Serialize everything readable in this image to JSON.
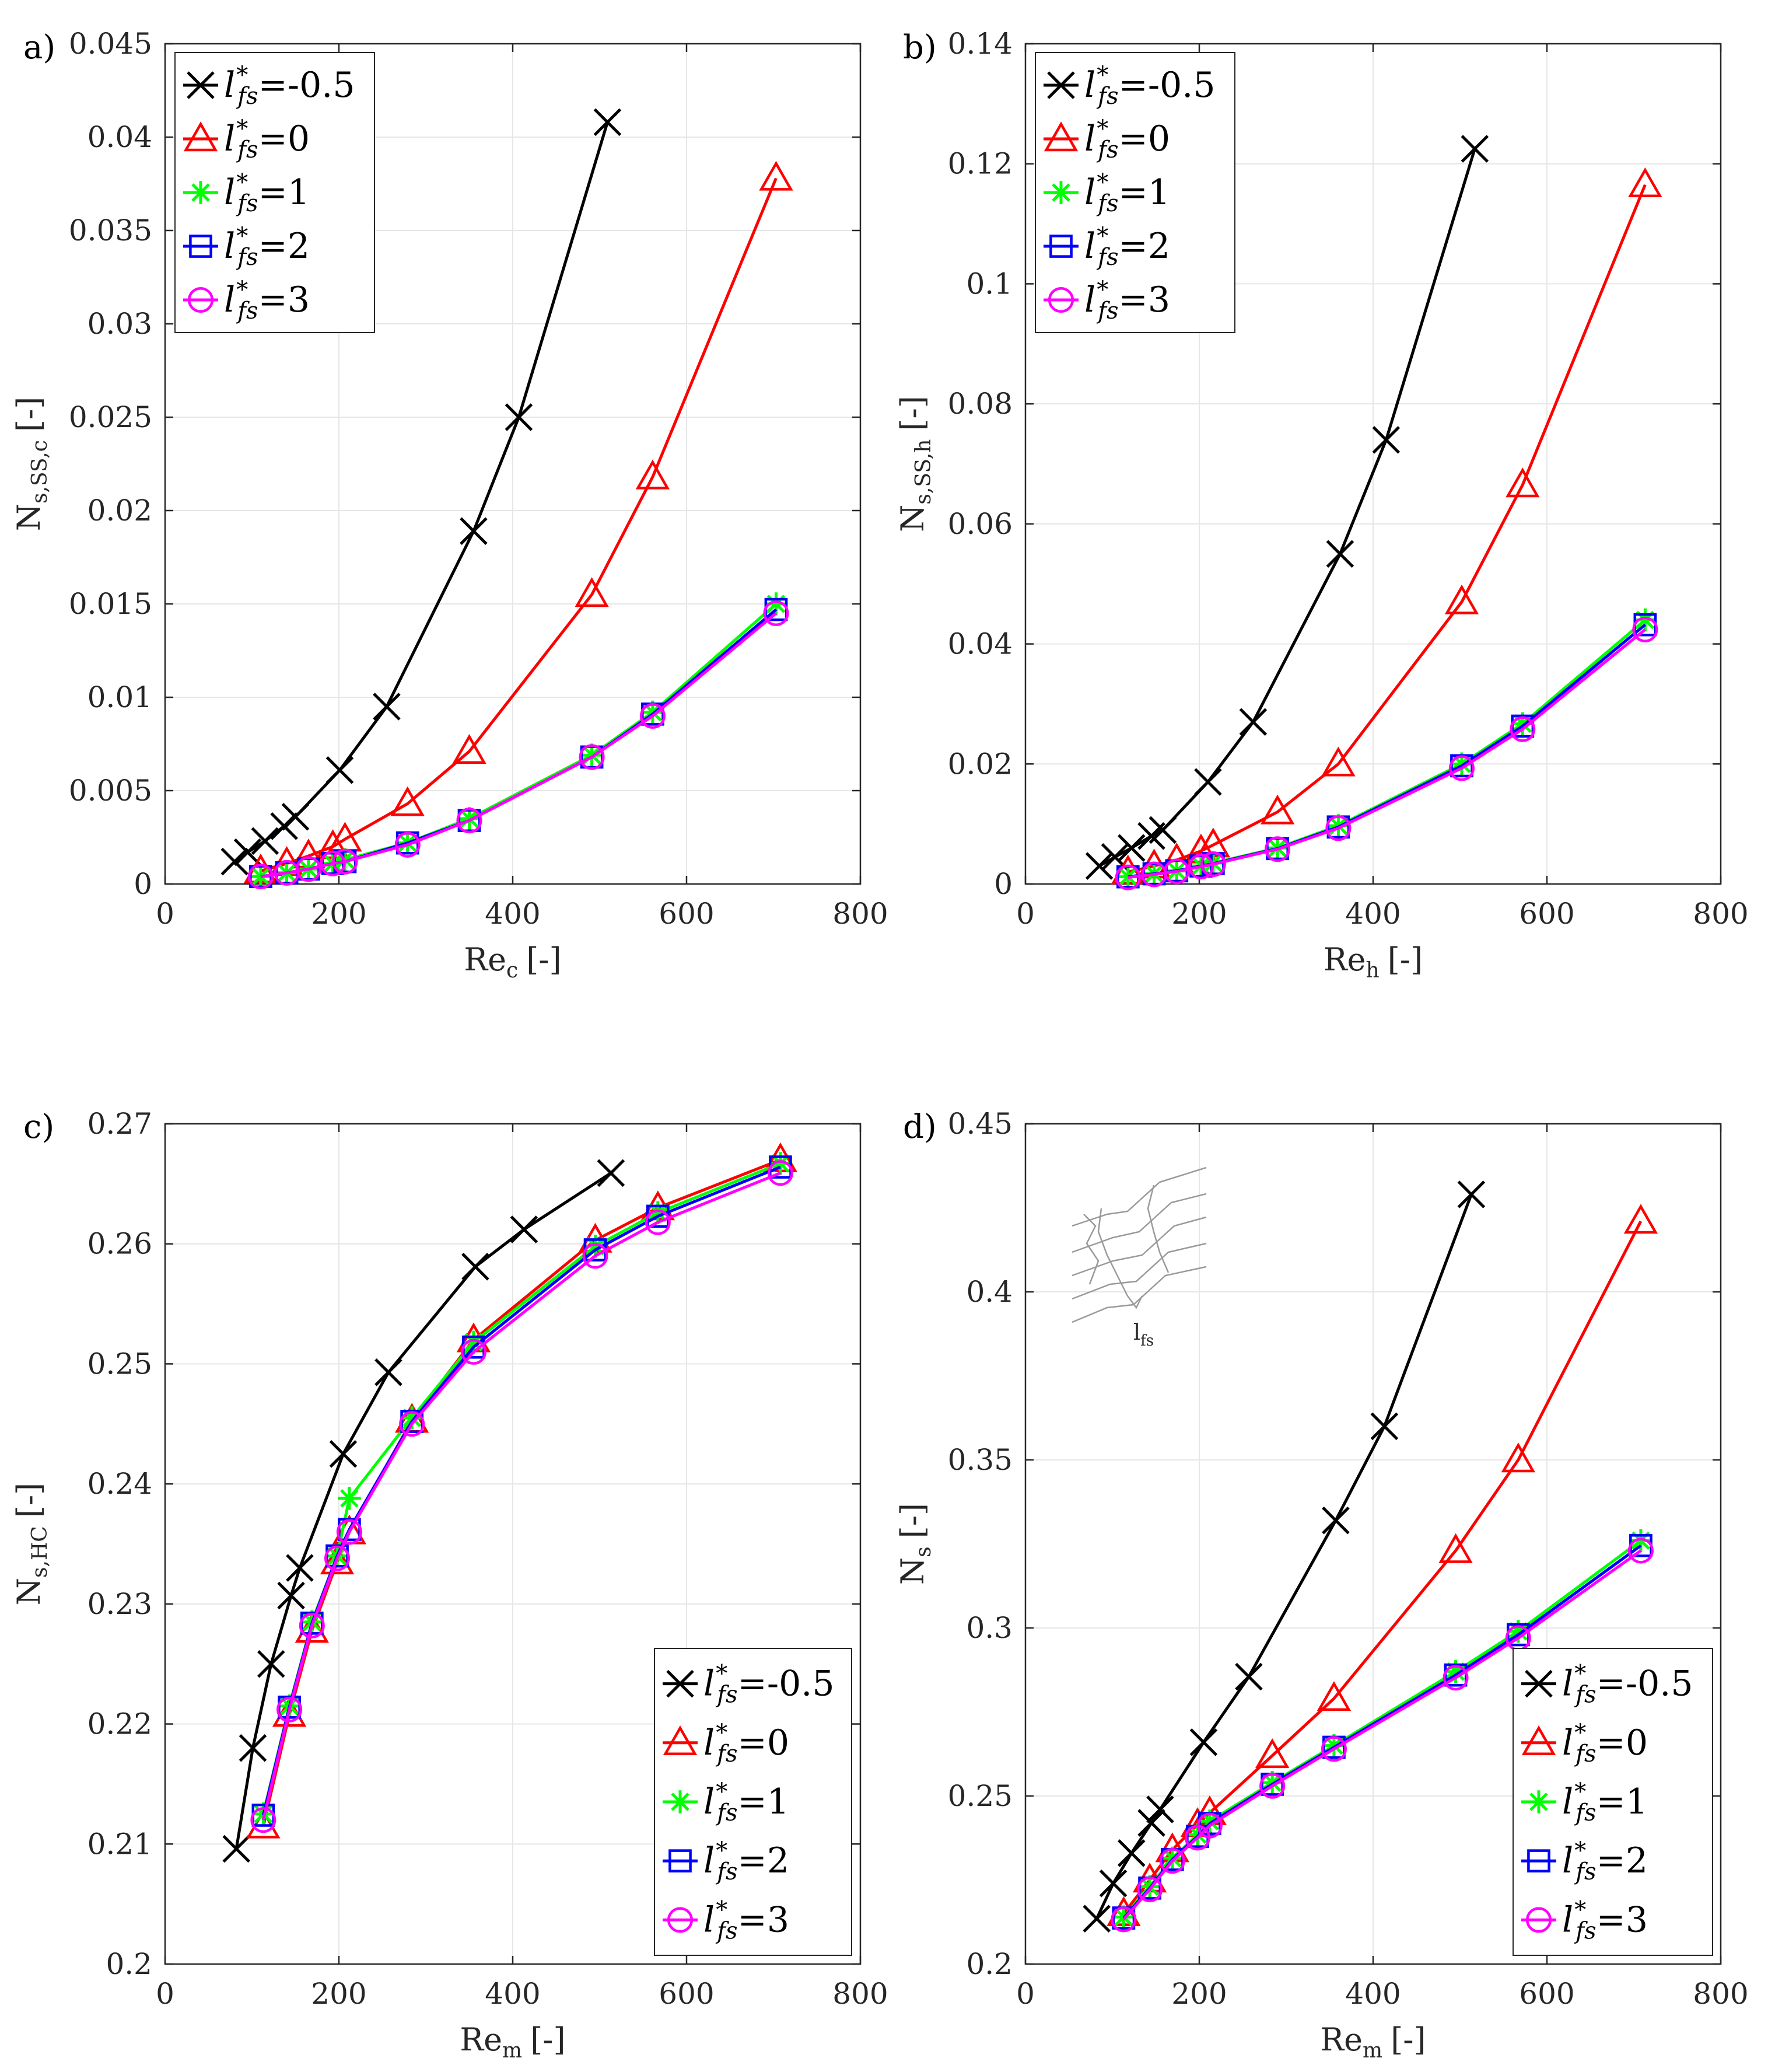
{
  "colors": {
    "black": "#000000",
    "red": "#ff0000",
    "green": "#00ff00",
    "blue": "#0000ff",
    "magenta": "#ff00ff",
    "grid": "#e6e6e6",
    "axis": "#262626",
    "inset": "#9a9a9a"
  },
  "series_meta": [
    {
      "l": "-0.5",
      "color": "#000000",
      "marker": "x"
    },
    {
      "l": "0",
      "color": "#ff0000",
      "marker": "triangle"
    },
    {
      "l": "1",
      "color": "#00ff00",
      "marker": "star"
    },
    {
      "l": "2",
      "color": "#0000ff",
      "marker": "square"
    },
    {
      "l": "3",
      "color": "#ff00ff",
      "marker": "circle"
    }
  ],
  "chart_data": [
    {
      "type": "line",
      "panel": "a)",
      "xlabel": "Re",
      "xlabel_sub": "c",
      "xlabel_unit": "[-]",
      "ylabel": "N",
      "ylabel_sub": "s,SS,c",
      "ylabel_unit": "[-]",
      "xlim": [
        0,
        800
      ],
      "ylim": [
        0,
        0.045
      ],
      "xticks": [
        0,
        200,
        400,
        600,
        800
      ],
      "yticks": [
        0,
        0.005,
        0.01,
        0.015,
        0.02,
        0.025,
        0.03,
        0.035,
        0.04,
        0.045
      ],
      "xtick_labels": [
        "0",
        "200",
        "400",
        "600",
        "800"
      ],
      "ytick_labels": [
        "0",
        "0.005",
        "0.01",
        "0.015",
        "0.02",
        "0.025",
        "0.03",
        "0.035",
        "0.04",
        "0.045"
      ],
      "grid": true,
      "legend_position": "top-left",
      "series": [
        {
          "name": "l*fs=-0.5",
          "x": [
            80,
            95,
            115,
            137,
            150,
            201,
            255,
            355,
            407,
            509
          ],
          "y": [
            0.0012,
            0.0017,
            0.0023,
            0.0031,
            0.0036,
            0.0061,
            0.0095,
            0.0189,
            0.025,
            0.0408
          ]
        },
        {
          "name": "l*fs=0",
          "x": [
            110,
            140,
            165,
            193,
            207,
            279,
            350,
            491,
            561,
            703
          ],
          "y": [
            0.0007,
            0.0011,
            0.0015,
            0.002,
            0.0024,
            0.0043,
            0.0071,
            0.0155,
            0.0218,
            0.0378
          ]
        },
        {
          "name": "l*fs=1",
          "x": [
            110,
            140,
            165,
            193,
            207,
            279,
            350,
            491,
            561,
            703
          ],
          "y": [
            0.0004,
            0.0006,
            0.0008,
            0.0011,
            0.0013,
            0.0022,
            0.0035,
            0.0069,
            0.0092,
            0.015
          ]
        },
        {
          "name": "l*fs=2",
          "x": [
            110,
            140,
            165,
            193,
            207,
            279,
            350,
            491,
            561,
            703
          ],
          "y": [
            0.0004,
            0.0006,
            0.0008,
            0.0011,
            0.0012,
            0.0022,
            0.0034,
            0.0068,
            0.0091,
            0.0147
          ]
        },
        {
          "name": "l*fs=3",
          "x": [
            110,
            140,
            165,
            193,
            207,
            279,
            350,
            491,
            561,
            703
          ],
          "y": [
            0.0004,
            0.0006,
            0.0008,
            0.0011,
            0.0012,
            0.0021,
            0.0034,
            0.0068,
            0.009,
            0.0145
          ]
        }
      ]
    },
    {
      "type": "line",
      "panel": "b)",
      "xlabel": "Re",
      "xlabel_sub": "h",
      "xlabel_unit": "[-]",
      "ylabel": "N",
      "ylabel_sub": "s,SS,h",
      "ylabel_unit": "[-]",
      "xlim": [
        0,
        800
      ],
      "ylim": [
        0,
        0.14
      ],
      "xticks": [
        0,
        200,
        400,
        600,
        800
      ],
      "yticks": [
        0,
        0.02,
        0.04,
        0.06,
        0.08,
        0.1,
        0.12,
        0.14
      ],
      "xtick_labels": [
        "0",
        "200",
        "400",
        "600",
        "800"
      ],
      "ytick_labels": [
        "0",
        "0.02",
        "0.04",
        "0.06",
        "0.08",
        "0.1",
        "0.12",
        "0.14"
      ],
      "grid": true,
      "legend_position": "top-left",
      "series": [
        {
          "name": "l*fs=-0.5",
          "x": [
            85,
            103,
            122,
            145,
            158,
            210,
            262,
            362,
            415,
            517
          ],
          "y": [
            0.003,
            0.0045,
            0.006,
            0.008,
            0.009,
            0.017,
            0.027,
            0.055,
            0.074,
            0.1225
          ]
        },
        {
          "name": "l*fs=0",
          "x": [
            118,
            148,
            174,
            202,
            216,
            290,
            360,
            502,
            572,
            713
          ],
          "y": [
            0.002,
            0.003,
            0.004,
            0.0055,
            0.0065,
            0.012,
            0.02,
            0.047,
            0.0665,
            0.1165
          ]
        },
        {
          "name": "l*fs=1",
          "x": [
            118,
            148,
            174,
            202,
            216,
            290,
            360,
            502,
            572,
            713
          ],
          "y": [
            0.0012,
            0.0017,
            0.0022,
            0.003,
            0.0035,
            0.006,
            0.0097,
            0.02,
            0.0267,
            0.044
          ]
        },
        {
          "name": "l*fs=2",
          "x": [
            118,
            148,
            174,
            202,
            216,
            290,
            360,
            502,
            572,
            713
          ],
          "y": [
            0.0012,
            0.0017,
            0.0022,
            0.003,
            0.0034,
            0.0059,
            0.0095,
            0.0197,
            0.0263,
            0.0432
          ]
        },
        {
          "name": "l*fs=3",
          "x": [
            118,
            148,
            174,
            202,
            216,
            290,
            360,
            502,
            572,
            713
          ],
          "y": [
            0.0011,
            0.0016,
            0.0021,
            0.0029,
            0.0033,
            0.0058,
            0.0093,
            0.0193,
            0.0258,
            0.0424
          ]
        }
      ]
    },
    {
      "type": "line",
      "panel": "c)",
      "xlabel": "Re",
      "xlabel_sub": "m",
      "xlabel_unit": "[-]",
      "ylabel": "N",
      "ylabel_sub": "s,HC",
      "ylabel_unit": "[-]",
      "xlim": [
        0,
        800
      ],
      "ylim": [
        0.2,
        0.27
      ],
      "xticks": [
        0,
        200,
        400,
        600,
        800
      ],
      "yticks": [
        0.2,
        0.21,
        0.22,
        0.23,
        0.24,
        0.25,
        0.26,
        0.27
      ],
      "xtick_labels": [
        "0",
        "200",
        "400",
        "600",
        "800"
      ],
      "ytick_labels": [
        "0.2",
        "0.21",
        "0.22",
        "0.23",
        "0.24",
        "0.25",
        "0.26",
        "0.27"
      ],
      "grid": true,
      "legend_position": "bottom-right",
      "series": [
        {
          "name": "l*fs=-0.5",
          "x": [
            82,
            101,
            122,
            145,
            155,
            205,
            257,
            357,
            413,
            513
          ],
          "y": [
            0.2096,
            0.218,
            0.225,
            0.2307,
            0.233,
            0.2425,
            0.2493,
            0.2581,
            0.2612,
            0.2659
          ]
        },
        {
          "name": "l*fs=0",
          "x": [
            113,
            143,
            169,
            198,
            212,
            284,
            355,
            495,
            567,
            708
          ],
          "y": [
            0.2115,
            0.2208,
            0.2278,
            0.2335,
            0.236,
            0.2453,
            0.252,
            0.2603,
            0.263,
            0.267
          ]
        },
        {
          "name": "l*fs=1",
          "x": [
            113,
            143,
            169,
            198,
            212,
            284,
            355,
            495,
            567,
            708
          ],
          "y": [
            0.2125,
            0.2215,
            0.2285,
            0.234,
            0.2388,
            0.2455,
            0.2518,
            0.2598,
            0.2626,
            0.2667
          ]
        },
        {
          "name": "l*fs=2",
          "x": [
            113,
            143,
            169,
            198,
            212,
            284,
            355,
            495,
            567,
            708
          ],
          "y": [
            0.2124,
            0.2214,
            0.2284,
            0.234,
            0.2362,
            0.2452,
            0.2514,
            0.2595,
            0.2623,
            0.2664
          ]
        },
        {
          "name": "l*fs=3",
          "x": [
            113,
            143,
            169,
            198,
            212,
            284,
            355,
            495,
            567,
            708
          ],
          "y": [
            0.212,
            0.2212,
            0.2282,
            0.2338,
            0.236,
            0.245,
            0.251,
            0.259,
            0.2618,
            0.2659
          ]
        }
      ]
    },
    {
      "type": "line",
      "panel": "d)",
      "xlabel": "Re",
      "xlabel_sub": "m",
      "xlabel_unit": "[-]",
      "ylabel": "N",
      "ylabel_sub": "s",
      "ylabel_unit": "[-]",
      "xlim": [
        0,
        800
      ],
      "ylim": [
        0.2,
        0.45
      ],
      "xticks": [
        0,
        200,
        400,
        600,
        800
      ],
      "yticks": [
        0.2,
        0.25,
        0.3,
        0.35,
        0.4,
        0.45
      ],
      "xtick_labels": [
        "0",
        "200",
        "400",
        "600",
        "800"
      ],
      "ytick_labels": [
        "0.2",
        "0.25",
        "0.3",
        "0.35",
        "0.4",
        "0.45"
      ],
      "grid": true,
      "legend_position": "bottom-right",
      "inset_label": "l",
      "inset_label_sub": "fs",
      "series": [
        {
          "name": "l*fs=-0.5",
          "x": [
            82,
            101,
            122,
            145,
            155,
            205,
            257,
            357,
            413,
            513
          ],
          "y": [
            0.2135,
            0.224,
            0.233,
            0.242,
            0.246,
            0.266,
            0.2855,
            0.332,
            0.36,
            0.429
          ]
        },
        {
          "name": "l*fs=0",
          "x": [
            113,
            143,
            169,
            198,
            212,
            284,
            355,
            495,
            567,
            708
          ],
          "y": [
            0.215,
            0.225,
            0.234,
            0.2415,
            0.245,
            0.262,
            0.279,
            0.323,
            0.35,
            0.421
          ]
        },
        {
          "name": "l*fs=1",
          "x": [
            113,
            143,
            169,
            198,
            212,
            284,
            355,
            495,
            567,
            708
          ],
          "y": [
            0.214,
            0.223,
            0.2315,
            0.2385,
            0.2425,
            0.254,
            0.265,
            0.287,
            0.299,
            0.326
          ]
        },
        {
          "name": "l*fs=2",
          "x": [
            113,
            143,
            169,
            198,
            212,
            284,
            355,
            495,
            567,
            708
          ],
          "y": [
            0.2137,
            0.2226,
            0.2311,
            0.238,
            0.2418,
            0.2535,
            0.2645,
            0.286,
            0.298,
            0.3245
          ]
        },
        {
          "name": "l*fs=3",
          "x": [
            113,
            143,
            169,
            198,
            212,
            284,
            355,
            495,
            567,
            708
          ],
          "y": [
            0.2133,
            0.2222,
            0.2307,
            0.2376,
            0.2412,
            0.253,
            0.264,
            0.2852,
            0.297,
            0.323
          ]
        }
      ]
    }
  ]
}
